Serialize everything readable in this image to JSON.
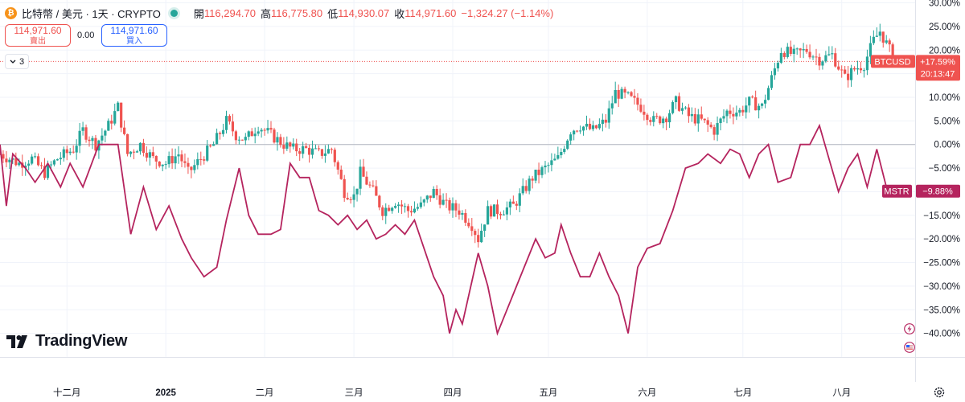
{
  "header": {
    "coin_icon": "bitcoin-icon",
    "coin_glyph": "₿",
    "title": "比特幣 / 美元 · 1天 · CRYPTO",
    "ohlc": [
      {
        "label": "開",
        "value": "116,294.70"
      },
      {
        "label": "高",
        "value": "116,775.80"
      },
      {
        "label": "低",
        "value": "114,930.07"
      },
      {
        "label": "收",
        "value": "114,971.60"
      }
    ],
    "change": "−1,324.27 (−1.14%)",
    "status_color": "#26a69a"
  },
  "trade": {
    "sell_price": "114,971.60",
    "sell_label": "賣出",
    "spread": "0.00",
    "buy_price": "114,971.60",
    "buy_label": "買入"
  },
  "indicator_toggle": {
    "label": "3",
    "icon": "chevron-down-icon"
  },
  "logo_text": "TradingView",
  "colors": {
    "up": "#26a69a",
    "down": "#ef5350",
    "compare": "#b5245e",
    "grid": "#f0f3fa",
    "zero_line": "#b2b5be"
  },
  "chart_data": {
    "type": "candlestick",
    "y_axis": {
      "unit": "percent",
      "ticks": [
        "30.00%",
        "25.00%",
        "20.00%",
        "15.00%",
        "10.00%",
        "5.00%",
        "0.00%",
        "−5.00%",
        "−10.00%",
        "−15.00%",
        "−20.00%",
        "−25.00%",
        "−30.00%",
        "−35.00%",
        "−40.00%"
      ],
      "ylim": [
        -45,
        30.6
      ]
    },
    "x_axis": {
      "ticks": [
        {
          "label": "十二月",
          "date": "2024-12-01"
        },
        {
          "label": "2025",
          "date": "2025-01-01"
        },
        {
          "label": "二月",
          "date": "2025-02-01"
        },
        {
          "label": "三月",
          "date": "2025-03-01"
        },
        {
          "label": "四月",
          "date": "2025-04-01"
        },
        {
          "label": "五月",
          "date": "2025-05-01"
        },
        {
          "label": "六月",
          "date": "2025-06-01"
        },
        {
          "label": "七月",
          "date": "2025-07-01"
        },
        {
          "label": "八月",
          "date": "2025-08-01"
        }
      ],
      "xlim": [
        "2024-11-10",
        "2025-08-21"
      ]
    },
    "series": [
      {
        "name": "BTCUSD",
        "kind": "candlestick",
        "last_label": "BTCUSD",
        "last_value": "+17.59%",
        "countdown": "20:13:47",
        "current_price_level": 17.6,
        "closes": [
          {
            "date": "2024-11-10",
            "v": -2
          },
          {
            "date": "2024-11-16",
            "v": -4
          },
          {
            "date": "2024-11-20",
            "v": -3
          },
          {
            "date": "2024-11-24",
            "v": -6
          },
          {
            "date": "2024-11-28",
            "v": -3
          },
          {
            "date": "2024-12-03",
            "v": -1
          },
          {
            "date": "2024-12-06",
            "v": 3
          },
          {
            "date": "2024-12-10",
            "v": 0
          },
          {
            "date": "2024-12-14",
            "v": 4
          },
          {
            "date": "2024-12-17",
            "v": 8
          },
          {
            "date": "2024-12-20",
            "v": -2
          },
          {
            "date": "2024-12-24",
            "v": 0
          },
          {
            "date": "2024-12-28",
            "v": -3
          },
          {
            "date": "2025-01-01",
            "v": -4
          },
          {
            "date": "2025-01-05",
            "v": -2
          },
          {
            "date": "2025-01-08",
            "v": -6
          },
          {
            "date": "2025-01-12",
            "v": -3
          },
          {
            "date": "2025-01-16",
            "v": 0
          },
          {
            "date": "2025-01-20",
            "v": 5
          },
          {
            "date": "2025-01-23",
            "v": 2
          },
          {
            "date": "2025-01-26",
            "v": 1
          },
          {
            "date": "2025-01-30",
            "v": 4
          },
          {
            "date": "2025-02-03",
            "v": 2
          },
          {
            "date": "2025-02-07",
            "v": 0
          },
          {
            "date": "2025-02-10",
            "v": -1
          },
          {
            "date": "2025-02-14",
            "v": -1
          },
          {
            "date": "2025-02-18",
            "v": -2
          },
          {
            "date": "2025-02-22",
            "v": -1
          },
          {
            "date": "2025-02-26",
            "v": -10
          },
          {
            "date": "2025-03-01",
            "v": -11
          },
          {
            "date": "2025-03-03",
            "v": -6
          },
          {
            "date": "2025-03-07",
            "v": -10
          },
          {
            "date": "2025-03-10",
            "v": -14
          },
          {
            "date": "2025-03-14",
            "v": -12
          },
          {
            "date": "2025-03-18",
            "v": -14
          },
          {
            "date": "2025-03-22",
            "v": -13
          },
          {
            "date": "2025-03-26",
            "v": -10
          },
          {
            "date": "2025-03-30",
            "v": -13
          },
          {
            "date": "2025-04-03",
            "v": -14
          },
          {
            "date": "2025-04-07",
            "v": -17
          },
          {
            "date": "2025-04-09",
            "v": -20
          },
          {
            "date": "2025-04-12",
            "v": -14
          },
          {
            "date": "2025-04-16",
            "v": -14
          },
          {
            "date": "2025-04-20",
            "v": -13
          },
          {
            "date": "2025-04-23",
            "v": -10
          },
          {
            "date": "2025-04-26",
            "v": -7
          },
          {
            "date": "2025-04-30",
            "v": -5
          },
          {
            "date": "2025-05-04",
            "v": -3
          },
          {
            "date": "2025-05-08",
            "v": 3
          },
          {
            "date": "2025-05-11",
            "v": 4
          },
          {
            "date": "2025-05-15",
            "v": 3
          },
          {
            "date": "2025-05-19",
            "v": 5
          },
          {
            "date": "2025-05-22",
            "v": 11
          },
          {
            "date": "2025-05-26",
            "v": 10
          },
          {
            "date": "2025-05-30",
            "v": 8
          },
          {
            "date": "2025-06-03",
            "v": 5
          },
          {
            "date": "2025-06-07",
            "v": 6
          },
          {
            "date": "2025-06-10",
            "v": 9
          },
          {
            "date": "2025-06-14",
            "v": 6
          },
          {
            "date": "2025-06-18",
            "v": 5
          },
          {
            "date": "2025-06-22",
            "v": 3
          },
          {
            "date": "2025-06-26",
            "v": 7
          },
          {
            "date": "2025-06-30",
            "v": 7
          },
          {
            "date": "2025-07-03",
            "v": 9
          },
          {
            "date": "2025-07-07",
            "v": 8
          },
          {
            "date": "2025-07-10",
            "v": 14
          },
          {
            "date": "2025-07-13",
            "v": 20
          },
          {
            "date": "2025-07-17",
            "v": 19
          },
          {
            "date": "2025-07-21",
            "v": 20
          },
          {
            "date": "2025-07-25",
            "v": 18
          },
          {
            "date": "2025-07-29",
            "v": 19
          },
          {
            "date": "2025-08-02",
            "v": 14
          },
          {
            "date": "2025-08-05",
            "v": 16
          },
          {
            "date": "2025-08-08",
            "v": 17
          },
          {
            "date": "2025-08-11",
            "v": 22
          },
          {
            "date": "2025-08-13",
            "v": 24
          },
          {
            "date": "2025-08-16",
            "v": 20
          },
          {
            "date": "2025-08-19",
            "v": 17.6
          }
        ]
      },
      {
        "name": "MSTR",
        "kind": "line",
        "last_label": "MSTR",
        "last_value": "−9.88%",
        "values": [
          {
            "date": "2024-11-10",
            "v": 0
          },
          {
            "date": "2024-11-12",
            "v": -13
          },
          {
            "date": "2024-11-14",
            "v": -2
          },
          {
            "date": "2024-11-18",
            "v": -5
          },
          {
            "date": "2024-11-21",
            "v": -8
          },
          {
            "date": "2024-11-25",
            "v": -4
          },
          {
            "date": "2024-11-29",
            "v": -9
          },
          {
            "date": "2024-12-02",
            "v": -4
          },
          {
            "date": "2024-12-06",
            "v": -9
          },
          {
            "date": "2024-12-11",
            "v": 0
          },
          {
            "date": "2024-12-17",
            "v": 0
          },
          {
            "date": "2024-12-21",
            "v": -19
          },
          {
            "date": "2024-12-25",
            "v": -9
          },
          {
            "date": "2024-12-29",
            "v": -18
          },
          {
            "date": "2025-01-02",
            "v": -13
          },
          {
            "date": "2025-01-06",
            "v": -20
          },
          {
            "date": "2025-01-09",
            "v": -24
          },
          {
            "date": "2025-01-13",
            "v": -28
          },
          {
            "date": "2025-01-17",
            "v": -26
          },
          {
            "date": "2025-01-20",
            "v": -16
          },
          {
            "date": "2025-01-24",
            "v": -5
          },
          {
            "date": "2025-01-27",
            "v": -15
          },
          {
            "date": "2025-01-30",
            "v": -19
          },
          {
            "date": "2025-02-03",
            "v": -19
          },
          {
            "date": "2025-02-06",
            "v": -18
          },
          {
            "date": "2025-02-09",
            "v": -4
          },
          {
            "date": "2025-02-12",
            "v": -7
          },
          {
            "date": "2025-02-15",
            "v": -7
          },
          {
            "date": "2025-02-18",
            "v": -14
          },
          {
            "date": "2025-02-21",
            "v": -15
          },
          {
            "date": "2025-02-24",
            "v": -17
          },
          {
            "date": "2025-02-27",
            "v": -15
          },
          {
            "date": "2025-03-02",
            "v": -18
          },
          {
            "date": "2025-03-05",
            "v": -16
          },
          {
            "date": "2025-03-08",
            "v": -20
          },
          {
            "date": "2025-03-11",
            "v": -19
          },
          {
            "date": "2025-03-14",
            "v": -17
          },
          {
            "date": "2025-03-17",
            "v": -19
          },
          {
            "date": "2025-03-20",
            "v": -16
          },
          {
            "date": "2025-03-23",
            "v": -22
          },
          {
            "date": "2025-03-26",
            "v": -28
          },
          {
            "date": "2025-03-29",
            "v": -32
          },
          {
            "date": "2025-03-31",
            "v": -40
          },
          {
            "date": "2025-04-02",
            "v": -35
          },
          {
            "date": "2025-04-04",
            "v": -38
          },
          {
            "date": "2025-04-07",
            "v": -29
          },
          {
            "date": "2025-04-09",
            "v": -23
          },
          {
            "date": "2025-04-12",
            "v": -30
          },
          {
            "date": "2025-04-15",
            "v": -40
          },
          {
            "date": "2025-04-18",
            "v": -35
          },
          {
            "date": "2025-04-21",
            "v": -30
          },
          {
            "date": "2025-04-24",
            "v": -25
          },
          {
            "date": "2025-04-27",
            "v": -20
          },
          {
            "date": "2025-04-30",
            "v": -24
          },
          {
            "date": "2025-05-03",
            "v": -23
          },
          {
            "date": "2025-05-05",
            "v": -17
          },
          {
            "date": "2025-05-08",
            "v": -23
          },
          {
            "date": "2025-05-11",
            "v": -28
          },
          {
            "date": "2025-05-14",
            "v": -28
          },
          {
            "date": "2025-05-17",
            "v": -23
          },
          {
            "date": "2025-05-20",
            "v": -28
          },
          {
            "date": "2025-05-23",
            "v": -32
          },
          {
            "date": "2025-05-26",
            "v": -40
          },
          {
            "date": "2025-05-29",
            "v": -26
          },
          {
            "date": "2025-06-01",
            "v": -22
          },
          {
            "date": "2025-06-05",
            "v": -21
          },
          {
            "date": "2025-06-09",
            "v": -14
          },
          {
            "date": "2025-06-13",
            "v": -5
          },
          {
            "date": "2025-06-17",
            "v": -4
          },
          {
            "date": "2025-06-20",
            "v": -2
          },
          {
            "date": "2025-06-24",
            "v": -4
          },
          {
            "date": "2025-06-27",
            "v": -1
          },
          {
            "date": "2025-06-30",
            "v": -2
          },
          {
            "date": "2025-07-03",
            "v": -7
          },
          {
            "date": "2025-07-06",
            "v": -2
          },
          {
            "date": "2025-07-09",
            "v": 0
          },
          {
            "date": "2025-07-12",
            "v": -8
          },
          {
            "date": "2025-07-16",
            "v": -7
          },
          {
            "date": "2025-07-19",
            "v": 0
          },
          {
            "date": "2025-07-22",
            "v": 0
          },
          {
            "date": "2025-07-25",
            "v": 4
          },
          {
            "date": "2025-07-28",
            "v": -3
          },
          {
            "date": "2025-07-31",
            "v": -10
          },
          {
            "date": "2025-08-03",
            "v": -5
          },
          {
            "date": "2025-08-06",
            "v": -2
          },
          {
            "date": "2025-08-09",
            "v": -9
          },
          {
            "date": "2025-08-12",
            "v": -1
          },
          {
            "date": "2025-08-15",
            "v": -9
          },
          {
            "date": "2025-08-18",
            "v": -9.88
          }
        ]
      }
    ],
    "grid": true,
    "legend": "none"
  }
}
